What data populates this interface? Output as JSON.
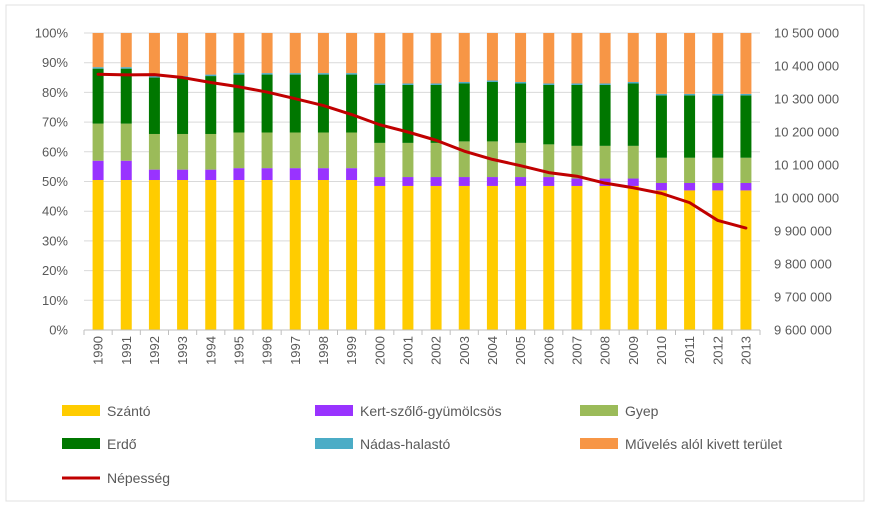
{
  "chart_data": {
    "type": "bar",
    "stacked": true,
    "percent_stacked": true,
    "categories": [
      "1990",
      "1991",
      "1992",
      "1993",
      "1994",
      "1995",
      "1996",
      "1997",
      "1998",
      "1999",
      "2000",
      "2001",
      "2002",
      "2003",
      "2004",
      "2005",
      "2006",
      "2007",
      "2008",
      "2009",
      "2010",
      "2011",
      "2012",
      "2013"
    ],
    "series": [
      {
        "name": "Szántó",
        "color": "#ffcc00",
        "values": [
          50.5,
          50.5,
          50.5,
          50.5,
          50.5,
          50.5,
          50.5,
          50.5,
          50.5,
          50.5,
          48.5,
          48.5,
          48.5,
          48.5,
          48.5,
          48.5,
          48.5,
          48.5,
          48.5,
          48.5,
          47.0,
          47.0,
          47.0,
          47.0
        ]
      },
      {
        "name": "Kert-szőlő-gyümölcsös",
        "color": "#9933ff",
        "values": [
          6.5,
          6.5,
          3.5,
          3.5,
          3.5,
          4.0,
          4.0,
          4.0,
          4.0,
          4.0,
          3.0,
          3.0,
          3.0,
          3.0,
          3.0,
          3.0,
          3.0,
          2.5,
          2.5,
          2.5,
          2.5,
          2.5,
          2.5,
          2.5
        ]
      },
      {
        "name": "Gyep",
        "color": "#9bbb59",
        "values": [
          12.5,
          12.5,
          12.0,
          12.0,
          12.0,
          12.0,
          12.0,
          12.0,
          12.0,
          12.0,
          11.5,
          11.5,
          11.5,
          12.0,
          12.0,
          11.5,
          11.0,
          11.0,
          11.0,
          11.0,
          8.5,
          8.5,
          8.5,
          8.5
        ]
      },
      {
        "name": "Erdő",
        "color": "#007700",
        "values": [
          18.5,
          18.5,
          19.0,
          19.0,
          19.5,
          19.5,
          19.5,
          19.5,
          19.5,
          19.5,
          19.5,
          19.5,
          19.5,
          19.5,
          20.0,
          20.0,
          20.0,
          20.5,
          20.5,
          21.0,
          21.0,
          21.0,
          21.0,
          21.0
        ]
      },
      {
        "name": "Nádas-halastó",
        "color": "#4bacc6",
        "values": [
          0.5,
          0.5,
          0.5,
          0.5,
          0.5,
          0.5,
          0.5,
          0.5,
          0.5,
          0.5,
          0.5,
          0.5,
          0.5,
          0.5,
          0.5,
          0.5,
          0.5,
          0.5,
          0.5,
          0.5,
          0.5,
          0.5,
          0.5,
          0.5
        ]
      },
      {
        "name": "Művelés alól kivett terület",
        "color": "#f79646",
        "values": [
          11.5,
          11.5,
          14.5,
          14.5,
          14.0,
          13.5,
          13.5,
          13.5,
          13.5,
          13.5,
          17.0,
          17.0,
          17.0,
          16.5,
          16.0,
          16.5,
          17.0,
          17.0,
          17.0,
          16.5,
          20.5,
          20.5,
          20.5,
          20.5
        ]
      }
    ],
    "line_series": {
      "name": "Népesség",
      "color": "#c00000",
      "axis": "right",
      "values": [
        10375000,
        10373000,
        10374000,
        10365000,
        10350000,
        10337000,
        10321000,
        10301000,
        10280000,
        10253000,
        10222000,
        10200000,
        10175000,
        10142000,
        10117000,
        10098000,
        10077000,
        10066000,
        10045000,
        10031000,
        10014000,
        9986000,
        9932000,
        9909000
      ]
    },
    "y_left": {
      "ylim": [
        0,
        100
      ],
      "ticks": [
        "0%",
        "10%",
        "20%",
        "30%",
        "40%",
        "50%",
        "60%",
        "70%",
        "80%",
        "90%",
        "100%"
      ]
    },
    "y_right": {
      "ylim": [
        9600000,
        10500000
      ],
      "ticks": [
        "9 600 000",
        "9 700 000",
        "9 800 000",
        "9 900 000",
        "10 000 000",
        "10 100 000",
        "10 200 000",
        "10 300 000",
        "10 400 000",
        "10 500 000"
      ]
    },
    "legend": {
      "position": "bottom",
      "items": [
        "Szántó",
        "Kert-szőlő-gyümölcsös",
        "Gyep",
        "Erdő",
        "Nádas-halastó",
        "Művelés alól kivett terület",
        "Népesség"
      ]
    },
    "grid": true
  }
}
